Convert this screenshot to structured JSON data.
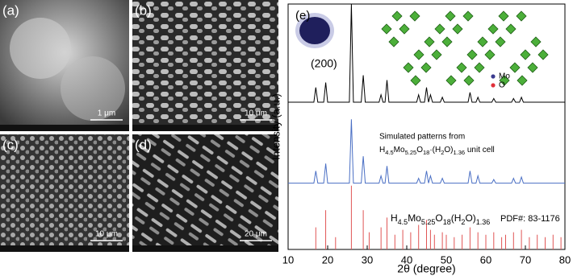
{
  "panels": [
    {
      "label": "(a)",
      "scale": "1 μm"
    },
    {
      "label": "(b)",
      "scale": "10 μm"
    },
    {
      "label": "(c)",
      "scale": "10 μm"
    },
    {
      "label": "(d)",
      "scale": "20 μm"
    }
  ],
  "chart_data": {
    "type": "line",
    "panel_label": "(e)",
    "inset_label": "(200)",
    "legend_atoms": [
      "Mo",
      "O"
    ],
    "atom_colors": [
      "#3b3b8f",
      "#e0303a"
    ],
    "simulated_note": "Simulated patterns from",
    "simulated_formula": [
      "H",
      "4.5",
      "Mo",
      "5.25",
      "O",
      "18",
      "·(H",
      "2",
      "O)",
      "1.36",
      " unit cell"
    ],
    "pdf_formula": [
      "H",
      "4.5",
      "Mo",
      "5.25",
      "O",
      "18",
      "(H",
      "2",
      "O)",
      "1.36"
    ],
    "pdf_label": "PDF#: 83-1176",
    "xlabel": "2θ (degree)",
    "ylabel": "Intensity (a.u.)",
    "xlim": [
      10,
      80
    ],
    "ylim": [
      0,
      100
    ],
    "xticks": [
      10,
      20,
      30,
      40,
      50,
      60,
      70,
      80
    ],
    "series": [
      {
        "type": "line",
        "color": "#000000",
        "x": [
          10,
          16.5,
          17,
          17.5,
          19,
          19.5,
          20,
          25.5,
          26,
          26.5,
          28.5,
          29,
          29.5,
          33,
          33.5,
          34,
          34.5,
          35,
          35.5,
          42.5,
          43,
          43.5,
          44.5,
          45,
          45.5,
          46,
          46.5,
          48.5,
          49,
          49.5,
          55.5,
          56,
          56.5,
          57.5,
          58,
          58.5,
          61.5,
          62,
          62.5,
          66.5,
          67,
          67.5,
          68.5,
          69,
          69.5,
          80
        ],
        "values": [
          60,
          60,
          66,
          60,
          60,
          68,
          60,
          60,
          100,
          60,
          60,
          71,
          60,
          60,
          63,
          60,
          60,
          69,
          60,
          60,
          63,
          60,
          60,
          66,
          60,
          63,
          60,
          60,
          62,
          60,
          60,
          64,
          60,
          60,
          62,
          60,
          60,
          61.5,
          60,
          60,
          61.5,
          60,
          60,
          62,
          60,
          60
        ]
      },
      {
        "type": "line",
        "color": "#4a6fc4",
        "x": [
          10,
          16.5,
          17,
          17.5,
          19,
          19.5,
          20,
          25.5,
          26,
          26.5,
          28.5,
          29,
          29.5,
          33,
          33.5,
          34,
          34.5,
          35,
          35.5,
          42.5,
          43,
          43.5,
          44.5,
          45,
          45.5,
          46,
          46.5,
          48.5,
          49,
          49.5,
          55.5,
          56,
          56.5,
          57.5,
          58,
          58.5,
          61.5,
          62,
          62.5,
          66.5,
          67,
          67.5,
          68.5,
          69,
          69.5,
          80
        ],
        "values": [
          27,
          27,
          32,
          27,
          27,
          35,
          27,
          27,
          53,
          27,
          27,
          38,
          27,
          27,
          30,
          27,
          27,
          34,
          27,
          27,
          29,
          27,
          27,
          32,
          27,
          30,
          27,
          27,
          29,
          27,
          27,
          32,
          27,
          27,
          30,
          27,
          27,
          28.5,
          27,
          27,
          29,
          27,
          27,
          29.5,
          27,
          27
        ]
      },
      {
        "type": "stick",
        "color": "#e05555",
        "x": [
          17,
          19.5,
          22,
          26,
          29,
          30.5,
          33.5,
          35,
          37,
          39,
          41,
          43,
          45,
          46,
          47,
          49,
          50,
          52,
          54,
          56,
          58,
          60,
          62,
          64,
          65,
          67,
          69,
          71,
          73,
          75,
          77,
          79
        ],
        "values": [
          9,
          16,
          5,
          26,
          16,
          7,
          9,
          13,
          6,
          8,
          7,
          10,
          12,
          8,
          6,
          7,
          6,
          5,
          6,
          9,
          7,
          6,
          7,
          5,
          6,
          7,
          8,
          5,
          6,
          5,
          6,
          5
        ]
      }
    ]
  }
}
